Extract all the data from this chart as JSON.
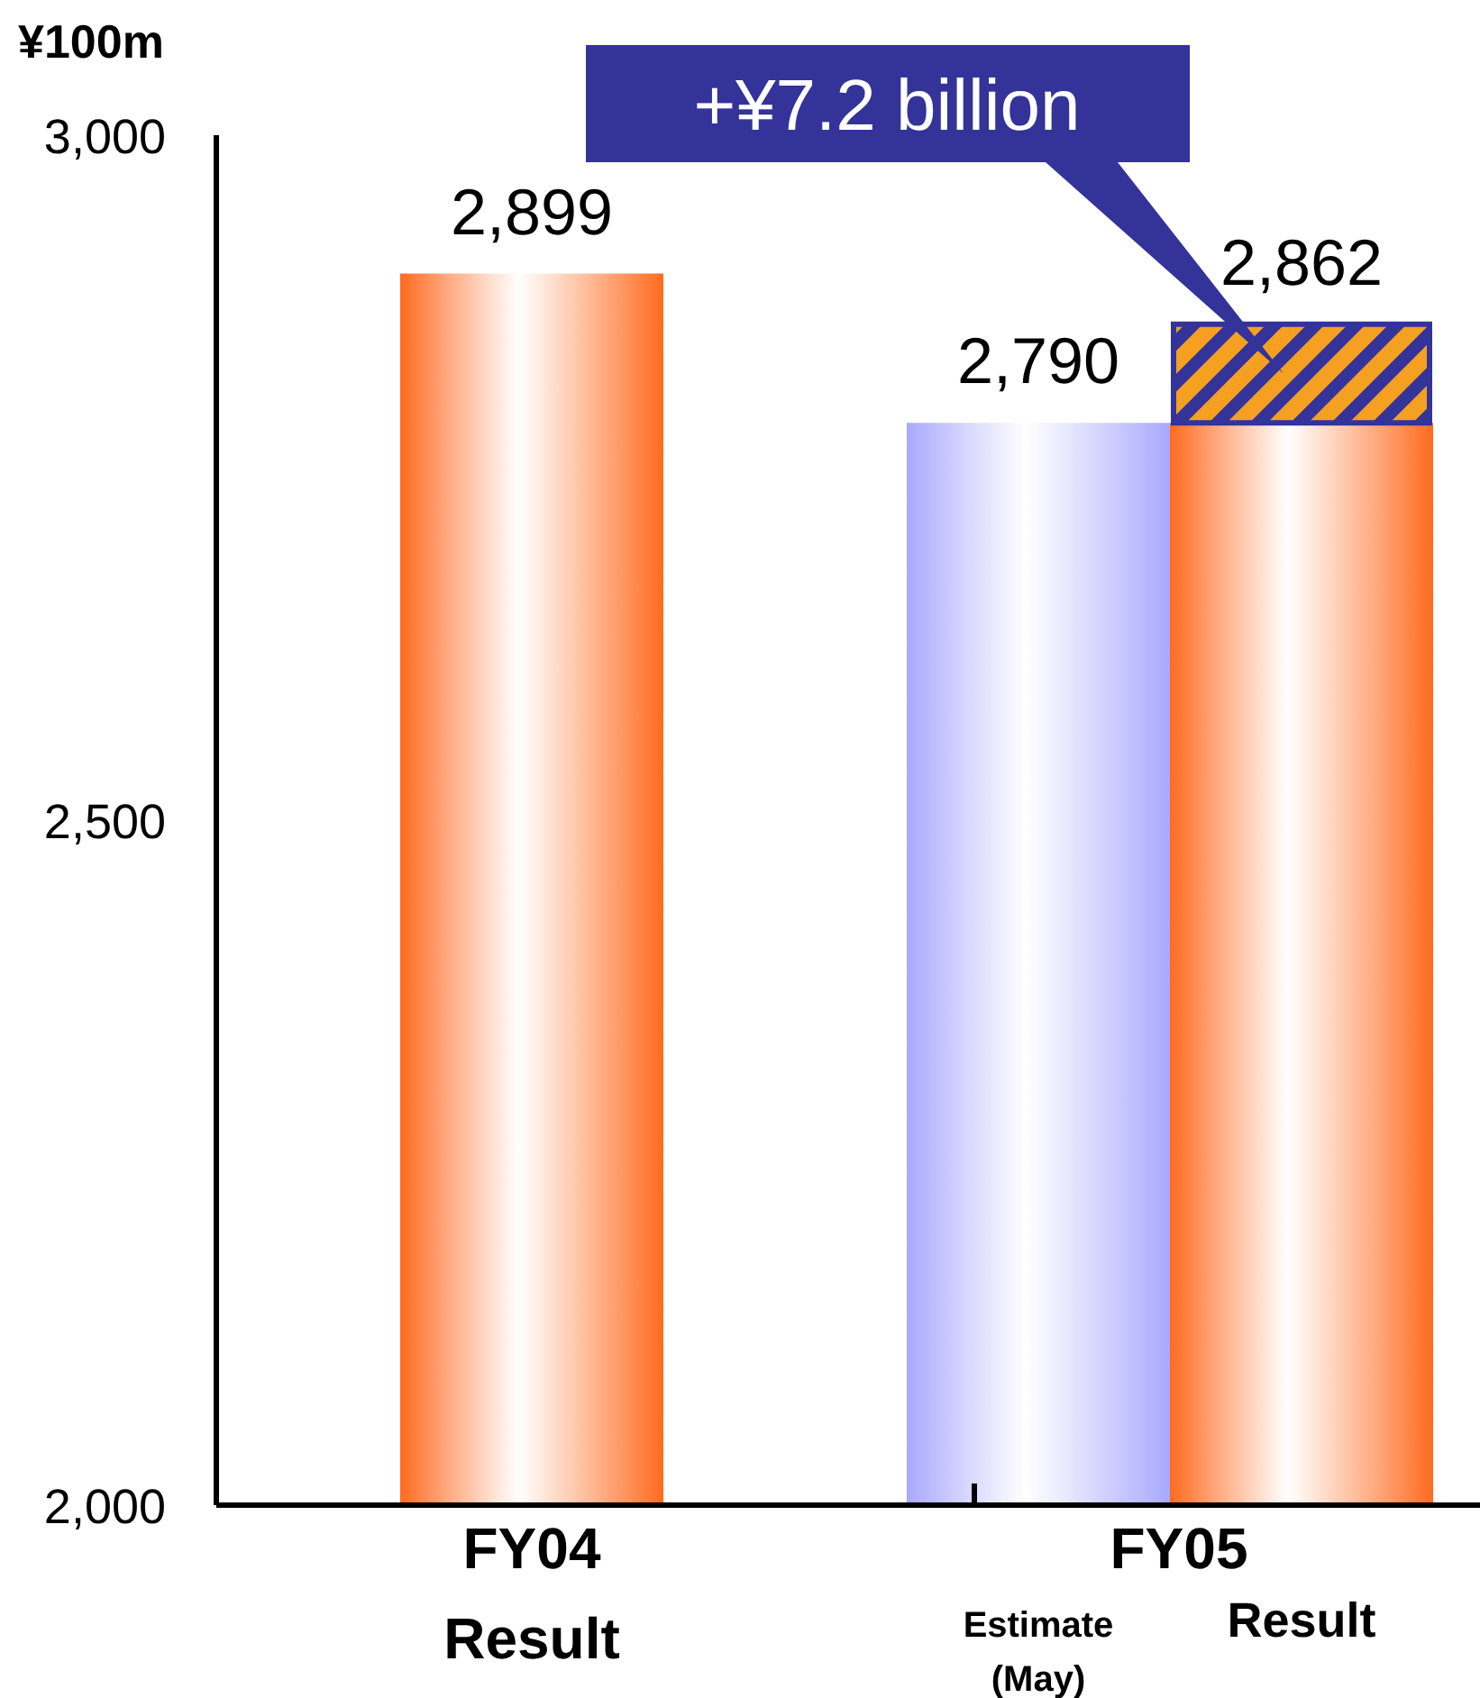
{
  "chart_data": {
    "type": "bar",
    "ylabel": "¥100m",
    "categories": [
      "Result",
      "Estimate\n(May)",
      "Result"
    ],
    "series": [
      {
        "colors": [
          "#ff6a1f",
          "#a8a8ff",
          "#ff6a1f"
        ],
        "values": [
          2899,
          2790,
          2790
        ]
      },
      {
        "color": "#f5a020",
        "base": [
          null,
          null,
          2790
        ],
        "values": [
          null,
          null,
          72
        ]
      }
    ],
    "totals": [
      "2,899",
      "2,790",
      "2,862"
    ],
    "ylim": [
      2000,
      3000
    ],
    "yticks": [
      {
        "value": 2000,
        "label": "2,000"
      },
      {
        "value": 2500,
        "label": "2,500"
      },
      {
        "value": 3000,
        "label": "3,000"
      }
    ],
    "annotations": [
      "FY04",
      "FY05",
      "+¥7.2 billion"
    ]
  }
}
